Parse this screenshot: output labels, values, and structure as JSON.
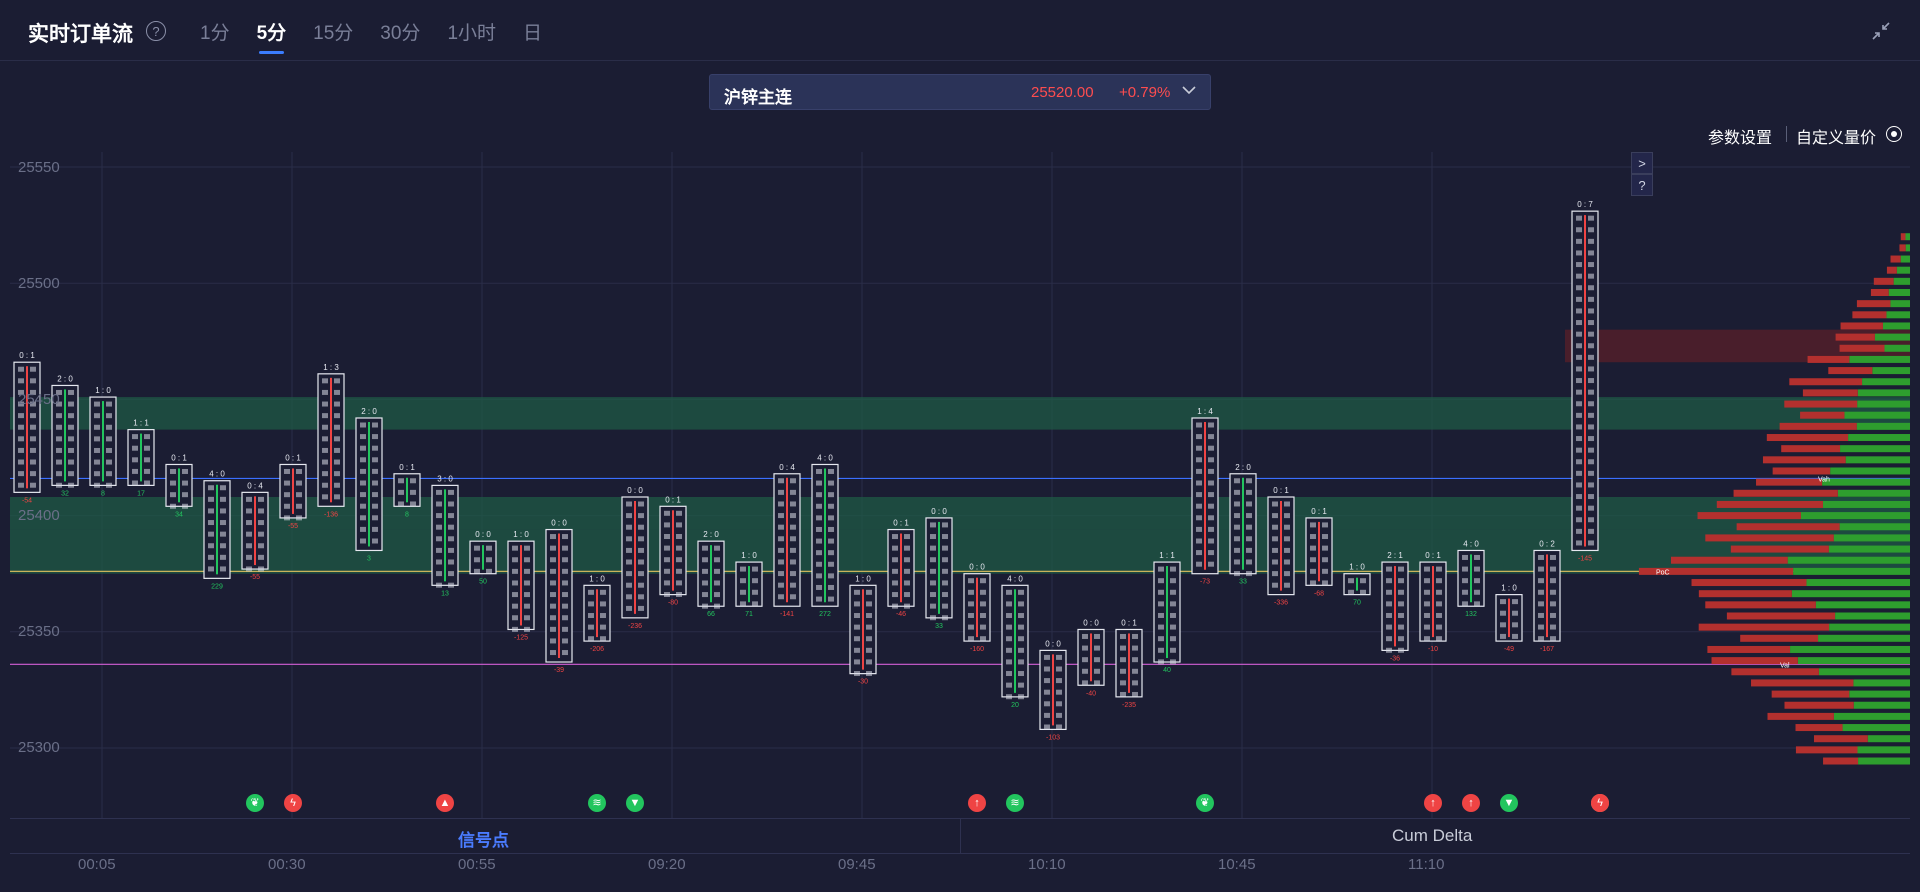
{
  "header": {
    "title": "实时订单流",
    "help_icon": "question-circle-icon",
    "tabs": [
      {
        "label": "1分",
        "active": false
      },
      {
        "label": "5分",
        "active": true
      },
      {
        "label": "15分",
        "active": false
      },
      {
        "label": "30分",
        "active": false
      },
      {
        "label": "1小时",
        "active": false
      },
      {
        "label": "日",
        "active": false
      }
    ],
    "collapse_icon": "minimize-arrows-icon"
  },
  "symbol": {
    "name": "沪锌主连",
    "price": "25520.00",
    "change": "+0.79%",
    "dropdown_icon": "chevron-down-icon",
    "price_color": "#ff4d4f"
  },
  "toolbar": {
    "settings_label": "参数设置",
    "custom_label": "自定义量价",
    "custom_icon": "target-circle-icon",
    "expand_button": ">",
    "help_button": "?"
  },
  "axes": {
    "y_labels": [
      "25550",
      "25500",
      "25450",
      "25400",
      "25350",
      "25300"
    ],
    "x_labels": [
      "00:05",
      "00:30",
      "00:55",
      "09:20",
      "09:45",
      "10:10",
      "10:45",
      "11:10"
    ]
  },
  "bottom_tabs": {
    "signal": "信号点",
    "cum_delta": "Cum Delta"
  },
  "colors": {
    "background": "#1b1d33",
    "buy_green": "#22c55e",
    "sell_red": "#ef4444",
    "zone_green": "#1f5a45",
    "zone_red": "#5a1f2a",
    "line_blue": "#3b6fff",
    "line_yellow": "#c9b25a",
    "line_pink": "#d35fd6",
    "tab_active": "#3b7dff"
  },
  "chart_data": {
    "type": "footprint",
    "price_range": [
      25290,
      25560
    ],
    "reference_lines": [
      {
        "name": "blue",
        "price": 25416
      },
      {
        "name": "yellow",
        "price": 25376
      },
      {
        "name": "pink",
        "price": 25336
      }
    ],
    "bars": [
      {
        "time": "00:00",
        "imbalance": "0 : 1",
        "high": 25466,
        "low": 25410,
        "delta": "-54"
      },
      {
        "time": "00:05",
        "imbalance": "2 : 0",
        "high": 25456,
        "low": 25413,
        "delta": "32"
      },
      {
        "time": "00:10",
        "imbalance": "1 : 0",
        "high": 25451,
        "low": 25413,
        "delta": "8"
      },
      {
        "time": "00:15",
        "imbalance": "1 : 1",
        "high": 25437,
        "low": 25413,
        "delta": "17"
      },
      {
        "time": "00:20",
        "imbalance": "0 : 1",
        "high": 25422,
        "low": 25404,
        "delta": "34"
      },
      {
        "time": "00:25",
        "imbalance": "4 : 0",
        "high": 25415,
        "low": 25373,
        "delta": "229"
      },
      {
        "time": "00:30",
        "imbalance": "0 : 4",
        "high": 25410,
        "low": 25377,
        "delta": "-55"
      },
      {
        "time": "00:35",
        "imbalance": "0 : 1",
        "high": 25422,
        "low": 25399,
        "delta": "-55"
      },
      {
        "time": "00:40",
        "imbalance": "1 : 3",
        "high": 25461,
        "low": 25404,
        "delta": "-136"
      },
      {
        "time": "00:45",
        "imbalance": "2 : 0",
        "high": 25442,
        "low": 25385,
        "delta": "3"
      },
      {
        "time": "00:50",
        "imbalance": "0 : 1",
        "high": 25418,
        "low": 25404,
        "delta": "8"
      },
      {
        "time": "00:55",
        "imbalance": "3 : 0",
        "high": 25413,
        "low": 25370,
        "delta": "13"
      },
      {
        "time": "09:00",
        "imbalance": "0 : 0",
        "high": 25389,
        "low": 25375,
        "delta": "50"
      },
      {
        "time": "09:05",
        "imbalance": "1 : 0",
        "high": 25389,
        "low": 25351,
        "delta": "-125"
      },
      {
        "time": "09:10",
        "imbalance": "0 : 0",
        "high": 25394,
        "low": 25337,
        "delta": "-39"
      },
      {
        "time": "09:15",
        "imbalance": "1 : 0",
        "high": 25370,
        "low": 25346,
        "delta": "-206"
      },
      {
        "time": "09:20",
        "imbalance": "0 : 0",
        "high": 25408,
        "low": 25356,
        "delta": "-236"
      },
      {
        "time": "09:25",
        "imbalance": "0 : 1",
        "high": 25404,
        "low": 25366,
        "delta": "-80"
      },
      {
        "time": "09:30",
        "imbalance": "2 : 0",
        "high": 25389,
        "low": 25361,
        "delta": "66"
      },
      {
        "time": "09:35",
        "imbalance": "1 : 0",
        "high": 25380,
        "low": 25361,
        "delta": "71"
      },
      {
        "time": "09:40",
        "imbalance": "0 : 4",
        "high": 25418,
        "low": 25361,
        "delta": "-141"
      },
      {
        "time": "09:45",
        "imbalance": "4 : 0",
        "high": 25422,
        "low": 25361,
        "delta": "272"
      },
      {
        "time": "09:50",
        "imbalance": "1 : 0",
        "high": 25370,
        "low": 25332,
        "delta": "-30"
      },
      {
        "time": "09:55",
        "imbalance": "0 : 1",
        "high": 25394,
        "low": 25361,
        "delta": "-46"
      },
      {
        "time": "10:00",
        "imbalance": "0 : 0",
        "high": 25399,
        "low": 25356,
        "delta": "33"
      },
      {
        "time": "10:05",
        "imbalance": "0 : 0",
        "high": 25375,
        "low": 25346,
        "delta": "-160"
      },
      {
        "time": "10:10",
        "imbalance": "4 : 0",
        "high": 25370,
        "low": 25322,
        "delta": "20"
      },
      {
        "time": "10:15",
        "imbalance": "0 : 0",
        "high": 25342,
        "low": 25308,
        "delta": "-103"
      },
      {
        "time": "10:20",
        "imbalance": "0 : 0",
        "high": 25351,
        "low": 25327,
        "delta": "-40"
      },
      {
        "time": "10:25",
        "imbalance": "0 : 1",
        "high": 25351,
        "low": 25322,
        "delta": "-235"
      },
      {
        "time": "10:30",
        "imbalance": "1 : 1",
        "high": 25380,
        "low": 25337,
        "delta": "40"
      },
      {
        "time": "10:35",
        "imbalance": "1 : 4",
        "high": 25442,
        "low": 25375,
        "delta": "-73"
      },
      {
        "time": "10:40",
        "imbalance": "2 : 0",
        "high": 25418,
        "low": 25375,
        "delta": "33"
      },
      {
        "time": "10:45",
        "imbalance": "0 : 1",
        "high": 25408,
        "low": 25366,
        "delta": "-336"
      },
      {
        "time": "10:50",
        "imbalance": "0 : 1",
        "high": 25399,
        "low": 25370,
        "delta": "-68"
      },
      {
        "time": "10:55",
        "imbalance": "1 : 0",
        "high": 25375,
        "low": 25366,
        "delta": "70"
      },
      {
        "time": "11:00",
        "imbalance": "2 : 1",
        "high": 25380,
        "low": 25342,
        "delta": "-36"
      },
      {
        "time": "11:05",
        "imbalance": "0 : 1",
        "high": 25380,
        "low": 25346,
        "delta": "-10"
      },
      {
        "time": "11:10",
        "imbalance": "4 : 0",
        "high": 25385,
        "low": 25361,
        "delta": "132"
      },
      {
        "time": "11:15",
        "imbalance": "1 : 0",
        "high": 25366,
        "low": 25346,
        "delta": "-49"
      },
      {
        "time": "11:20",
        "imbalance": "0 : 2",
        "high": 25385,
        "low": 25346,
        "delta": "-167"
      },
      {
        "time": "11:25",
        "imbalance": "0 : 7",
        "high": 25531,
        "low": 25385,
        "delta": "-145"
      }
    ],
    "highlight_zones": [
      {
        "kind": "buy",
        "from": 25451,
        "to": 25437
      },
      {
        "kind": "buy",
        "from": 25408,
        "to": 25394
      },
      {
        "kind": "buy",
        "from": 25394,
        "to": 25375
      },
      {
        "kind": "sell",
        "from": 25480,
        "to": 25466
      }
    ],
    "signals": [
      {
        "time": "00:05",
        "icon": "leaf-icon",
        "color": "#22c55e"
      },
      {
        "time": "00:10",
        "icon": "bolt-icon",
        "color": "#ef4444"
      },
      {
        "time": "00:30",
        "icon": "triangle-up-icon",
        "color": "#ef4444"
      },
      {
        "time": "00:50",
        "icon": "layers-icon",
        "color": "#22c55e"
      },
      {
        "time": "00:55",
        "icon": "triangle-down-icon",
        "color": "#22c55e"
      },
      {
        "time": "09:40",
        "icon": "arrow-up-icon",
        "color": "#ef4444"
      },
      {
        "time": "09:45",
        "icon": "layers-icon",
        "color": "#22c55e"
      },
      {
        "time": "10:10",
        "icon": "leaf-icon",
        "color": "#22c55e"
      },
      {
        "time": "10:40",
        "icon": "arrow-up-icon",
        "color": "#ef4444"
      },
      {
        "time": "10:45",
        "icon": "arrow-up-icon",
        "color": "#ef4444"
      },
      {
        "time": "10:50",
        "icon": "triangle-down-icon",
        "color": "#22c55e"
      },
      {
        "time": "11:15",
        "icon": "layers-icon",
        "color": "#22c55e"
      },
      {
        "time": "11:20",
        "icon": "arrow-up-icon",
        "color": "#ef4444"
      },
      {
        "time": "11:25",
        "icon": "bolt-icon",
        "color": "#ef4444"
      }
    ],
    "volume_profile_markers": [
      "Vah",
      "PoC",
      "Val"
    ]
  }
}
